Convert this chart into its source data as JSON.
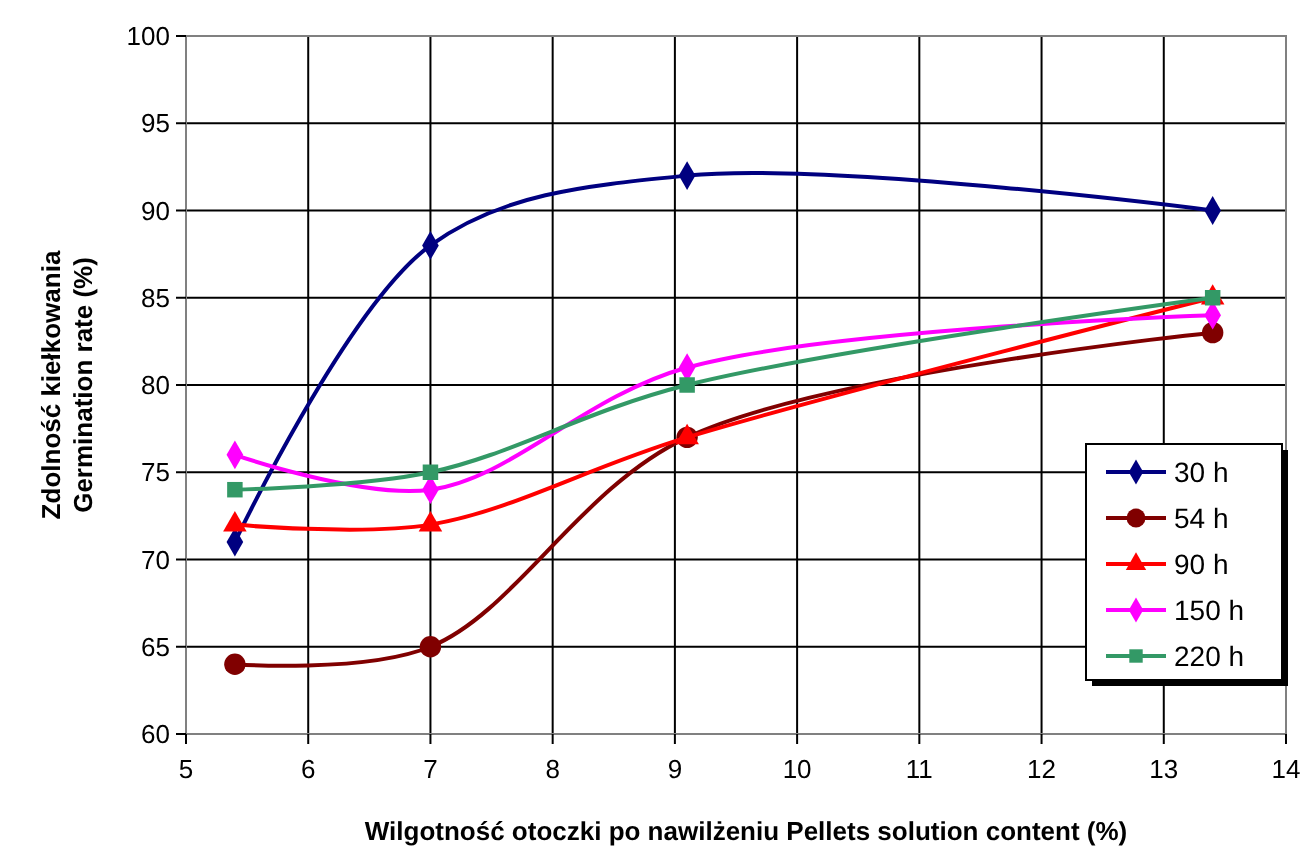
{
  "chart_data": {
    "type": "line",
    "xlabel": "Wilgotność otoczki po nawilżeniu  Pellets solution content (%)",
    "ylabel": "Zdolność kiełkowania\nGermination rate (%)",
    "x": [
      5.4,
      7.0,
      9.1,
      13.4
    ],
    "series": [
      {
        "name": "30 h",
        "color": "#000080",
        "marker": "diamond",
        "values": [
          71,
          88,
          92,
          90
        ]
      },
      {
        "name": "54 h",
        "color": "#800000",
        "marker": "circle",
        "values": [
          64,
          65,
          77,
          83
        ]
      },
      {
        "name": "90 h",
        "color": "#ff0000",
        "marker": "triangle",
        "values": [
          72,
          72,
          77,
          85
        ]
      },
      {
        "name": "150 h",
        "color": "#ff00ff",
        "marker": "diamond",
        "values": [
          76,
          74,
          81,
          84
        ]
      },
      {
        "name": "220 h",
        "color": "#339966",
        "marker": "square",
        "values": [
          74,
          75,
          80,
          85
        ]
      }
    ],
    "xlim": [
      5,
      14
    ],
    "xticks": [
      5,
      6,
      7,
      8,
      9,
      10,
      11,
      12,
      13,
      14
    ],
    "ylim": [
      60,
      100
    ],
    "yticks": [
      60,
      65,
      70,
      75,
      80,
      85,
      90,
      95,
      100
    ],
    "grid": true,
    "legend": "right",
    "line_style": "solid"
  }
}
